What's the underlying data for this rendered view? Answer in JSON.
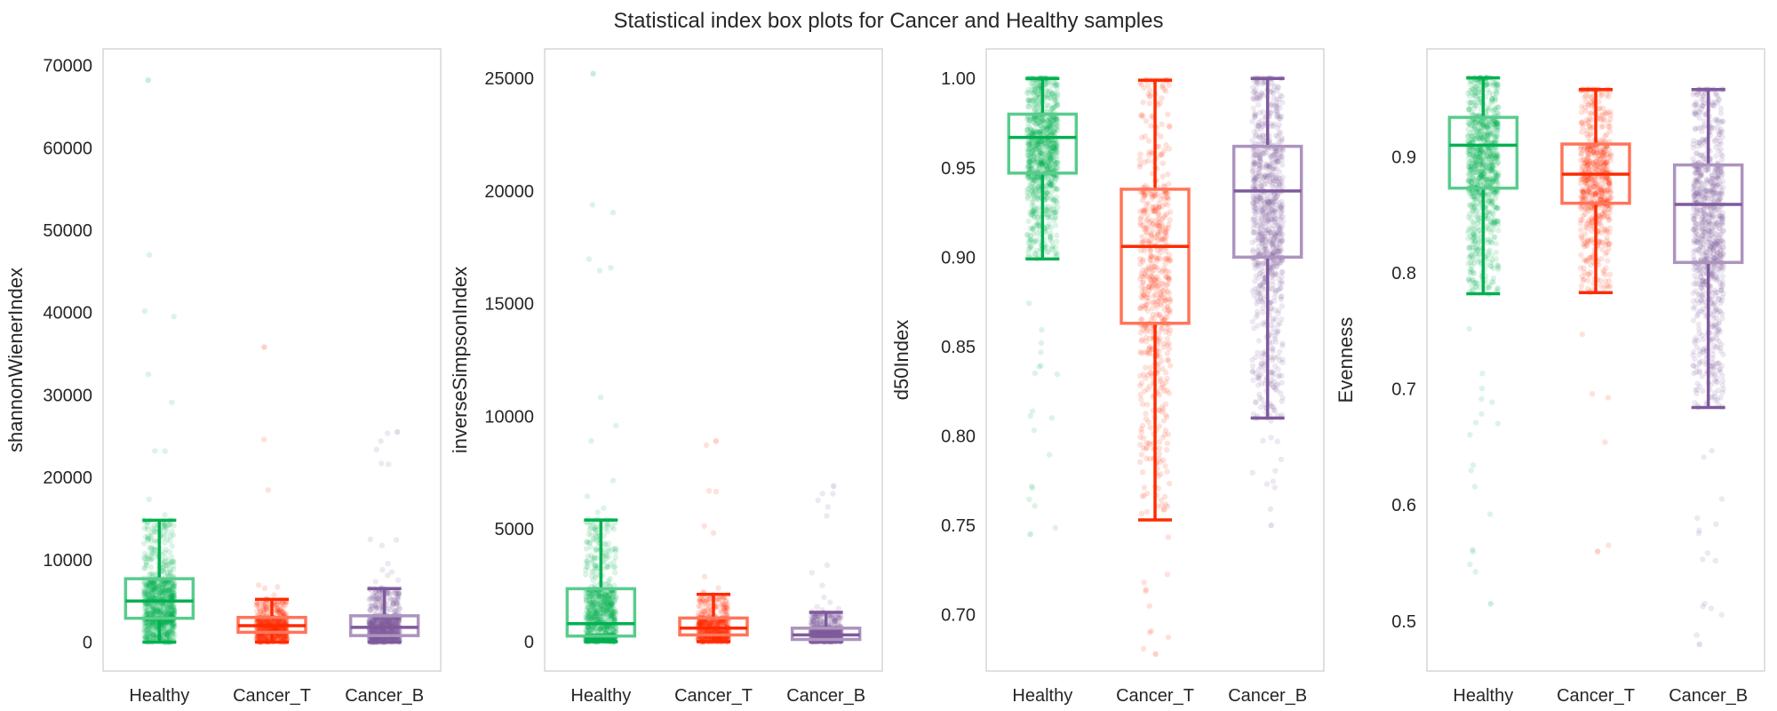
{
  "title": "Statistical index box plots for Cancer and Healthy samples",
  "colors": {
    "Healthy": "#00b050",
    "Cancer_T": "#ff2a00",
    "Cancer_B": "#7f5a9c"
  },
  "chart_data": [
    {
      "type": "box",
      "ylabel": "shannonWienerIndex",
      "categories": [
        "Healthy",
        "Cancer_T",
        "Cancer_B"
      ],
      "ylim": [
        -3500,
        72000
      ],
      "yticks": [
        0,
        10000,
        20000,
        30000,
        40000,
        50000,
        60000,
        70000
      ],
      "ytick_labels": [
        "0",
        "10000",
        "20000",
        "30000",
        "40000",
        "50000",
        "60000",
        "70000"
      ],
      "grid": false,
      "boxes": [
        {
          "category": "Healthy",
          "whislo": 0,
          "q1": 2900,
          "med": 5000,
          "q3": 7700,
          "whishi": 14800,
          "points_min": 0,
          "points_max": 68200,
          "point_count": 1400
        },
        {
          "category": "Cancer_T",
          "whislo": 0,
          "q1": 1200,
          "med": 2000,
          "q3": 3000,
          "whishi": 5200,
          "points_min": 0,
          "points_max": 35800,
          "point_count": 600
        },
        {
          "category": "Cancer_B",
          "whislo": 0,
          "q1": 800,
          "med": 1800,
          "q3": 3200,
          "whishi": 6500,
          "points_min": 0,
          "points_max": 25500,
          "point_count": 1400
        }
      ]
    },
    {
      "type": "box",
      "ylabel": "inverseSimpsonIndex",
      "categories": [
        "Healthy",
        "Cancer_T",
        "Cancer_B"
      ],
      "ylim": [
        -1300,
        26300
      ],
      "yticks": [
        0,
        5000,
        10000,
        15000,
        20000,
        25000
      ],
      "ytick_labels": [
        "0",
        "5000",
        "10000",
        "15000",
        "20000",
        "25000"
      ],
      "grid": false,
      "boxes": [
        {
          "category": "Healthy",
          "whislo": 0,
          "q1": 250,
          "med": 800,
          "q3": 2350,
          "whishi": 5400,
          "points_min": 0,
          "points_max": 25200,
          "point_count": 1400
        },
        {
          "category": "Cancer_T",
          "whislo": 0,
          "q1": 300,
          "med": 600,
          "q3": 1050,
          "whishi": 2100,
          "points_min": 0,
          "points_max": 8900,
          "point_count": 600
        },
        {
          "category": "Cancer_B",
          "whislo": 0,
          "q1": 100,
          "med": 300,
          "q3": 600,
          "whishi": 1300,
          "points_min": 0,
          "points_max": 6900,
          "point_count": 1400
        }
      ]
    },
    {
      "type": "box",
      "ylabel": "d50Index",
      "categories": [
        "Healthy",
        "Cancer_T",
        "Cancer_B"
      ],
      "ylim": [
        0.6685,
        1.0165
      ],
      "yticks": [
        0.7,
        0.75,
        0.8,
        0.85,
        0.9,
        0.95,
        1.0
      ],
      "ytick_labels": [
        "0.70",
        "0.75",
        "0.80",
        "0.85",
        "0.90",
        "0.95",
        "1.00"
      ],
      "grid": false,
      "boxes": [
        {
          "category": "Healthy",
          "whislo": 0.899,
          "q1": 0.947,
          "med": 0.967,
          "q3": 0.98,
          "whishi": 1.0,
          "points_min": 0.745,
          "points_max": 1.0,
          "point_count": 1400
        },
        {
          "category": "Cancer_T",
          "whislo": 0.753,
          "q1": 0.863,
          "med": 0.906,
          "q3": 0.938,
          "whishi": 0.999,
          "points_min": 0.678,
          "points_max": 0.999,
          "point_count": 600
        },
        {
          "category": "Cancer_B",
          "whislo": 0.81,
          "q1": 0.9,
          "med": 0.937,
          "q3": 0.962,
          "whishi": 1.0,
          "points_min": 0.75,
          "points_max": 1.0,
          "point_count": 1400
        }
      ]
    },
    {
      "type": "box",
      "ylabel": "Evenness",
      "categories": [
        "Healthy",
        "Cancer_T",
        "Cancer_B"
      ],
      "ylim": [
        0.457,
        0.993
      ],
      "yticks": [
        0.5,
        0.6,
        0.7,
        0.8,
        0.9
      ],
      "ytick_labels": [
        "0.5",
        "0.6",
        "0.7",
        "0.8",
        "0.9"
      ],
      "grid": false,
      "boxes": [
        {
          "category": "Healthy",
          "whislo": 0.782,
          "q1": 0.873,
          "med": 0.91,
          "q3": 0.934,
          "whishi": 0.968,
          "points_min": 0.515,
          "points_max": 0.968,
          "point_count": 1400
        },
        {
          "category": "Cancer_T",
          "whislo": 0.783,
          "q1": 0.86,
          "med": 0.885,
          "q3": 0.911,
          "whishi": 0.958,
          "points_min": 0.56,
          "points_max": 0.958,
          "point_count": 600
        },
        {
          "category": "Cancer_B",
          "whislo": 0.684,
          "q1": 0.809,
          "med": 0.859,
          "q3": 0.893,
          "whishi": 0.958,
          "points_min": 0.48,
          "points_max": 0.958,
          "point_count": 1400
        }
      ]
    }
  ]
}
